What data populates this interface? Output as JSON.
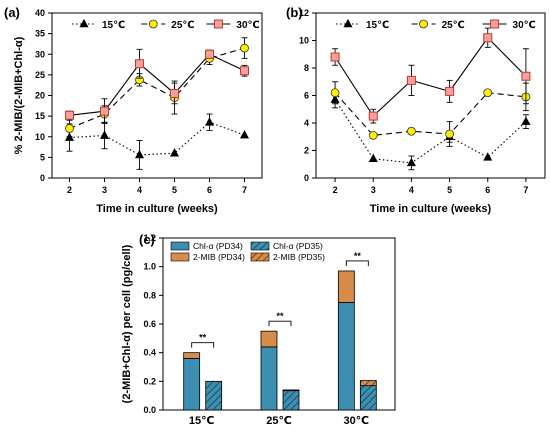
{
  "chart_data": [
    {
      "panel_label": "(a)",
      "type": "line",
      "xlabel": "Time in culture (weeks)",
      "ylabel": "% 2-MIB/(2-MIB+Chl-α)",
      "xlim": [
        1.5,
        7.5
      ],
      "ylim": [
        0,
        40
      ],
      "x_ticks": [
        "2",
        "3",
        "4",
        "5",
        "6",
        "7"
      ],
      "y_ticks": [
        "0",
        "5",
        "10",
        "15",
        "20",
        "25",
        "30",
        "35",
        "40"
      ],
      "legend_position": "top",
      "series": [
        {
          "name": "15℃",
          "marker": "triangle",
          "line": "dotted",
          "color": "#000000",
          "x": [
            2,
            3,
            4,
            5,
            6,
            7
          ],
          "y": [
            9.8,
            10.3,
            5.6,
            6.0,
            13.5,
            10.4
          ],
          "err": [
            3.3,
            3.2,
            3.5,
            0,
            2.0,
            0
          ]
        },
        {
          "name": "25℃",
          "marker": "circle",
          "line": "dashed",
          "color": "#ffee00",
          "x": [
            2,
            3,
            4,
            5,
            6,
            7
          ],
          "y": [
            12.0,
            15.5,
            23.8,
            19.5,
            29.0,
            31.5
          ],
          "err": [
            2.0,
            2.0,
            1.5,
            4.0,
            1.5,
            2.5
          ]
        },
        {
          "name": "30℃",
          "marker": "square",
          "line": "solid",
          "color": "#f4a0a0",
          "x": [
            2,
            3,
            4,
            5,
            6,
            7
          ],
          "y": [
            15.2,
            16.2,
            27.7,
            20.5,
            30.0,
            26.0
          ],
          "err": [
            1.0,
            3.0,
            3.5,
            2.5,
            1.0,
            1.3
          ]
        }
      ]
    },
    {
      "panel_label": "(b)",
      "type": "line",
      "xlabel": "Time in culture (weeks)",
      "ylabel": "",
      "xlim": [
        1.5,
        7.5
      ],
      "ylim": [
        0,
        12
      ],
      "x_ticks": [
        "2",
        "3",
        "4",
        "5",
        "6",
        "7"
      ],
      "y_ticks": [
        "0",
        "2",
        "4",
        "6",
        "8",
        "10",
        "12"
      ],
      "legend_position": "top",
      "series": [
        {
          "name": "15℃",
          "marker": "triangle",
          "line": "dotted",
          "color": "#000000",
          "x": [
            2,
            3,
            4,
            5,
            6,
            7
          ],
          "y": [
            5.7,
            1.4,
            1.1,
            3.0,
            1.5,
            4.1
          ],
          "err": [
            0.6,
            0,
            0.5,
            0.4,
            0,
            0.5
          ]
        },
        {
          "name": "25℃",
          "marker": "circle",
          "line": "dashed",
          "color": "#ffee00",
          "x": [
            2,
            3,
            4,
            5,
            6,
            7
          ],
          "y": [
            6.2,
            3.1,
            3.4,
            3.2,
            6.2,
            5.9
          ],
          "err": [
            0.8,
            0,
            0.2,
            0.9,
            0,
            1.0
          ]
        },
        {
          "name": "30℃",
          "marker": "square",
          "line": "solid",
          "color": "#f4a0a0",
          "x": [
            2,
            3,
            4,
            5,
            6,
            7
          ],
          "y": [
            8.8,
            4.5,
            7.1,
            6.3,
            10.2,
            7.4
          ],
          "err": [
            0.6,
            0.5,
            1.1,
            0.8,
            0.7,
            2.0
          ]
        }
      ]
    },
    {
      "panel_label": "(c)",
      "type": "bar",
      "stacked": true,
      "xlabel": "",
      "ylabel": "(2-MIB+Chl-α) per cell (pg/cell)",
      "ylim": [
        0,
        1.2
      ],
      "y_ticks": [
        "0.0",
        "0.2",
        "0.4",
        "0.6",
        "0.8",
        "1.0",
        "1.2"
      ],
      "categories": [
        "15℃",
        "25℃",
        "30℃"
      ],
      "legend": [
        "Chl-α (PD34)",
        "Chl-α (PD35)",
        "2-MIB (PD34)",
        "2-MIB (PD35)"
      ],
      "series": [
        {
          "name": "Chl-α (PD34)",
          "color": "#3c8fb0",
          "values": [
            0.36,
            0.44,
            0.75
          ]
        },
        {
          "name": "2-MIB (PD34)",
          "color": "#d98c4a",
          "values": [
            0.04,
            0.11,
            0.22
          ]
        },
        {
          "name": "Chl-α (PD35)",
          "color": "#3c8fb0",
          "hatch": true,
          "values": [
            0.2,
            0.135,
            0.17
          ]
        },
        {
          "name": "2-MIB (PD35)",
          "color": "#d98c4a",
          "hatch": true,
          "values": [
            0.0,
            0.005,
            0.035
          ]
        }
      ],
      "annotations": [
        "**",
        "**",
        "**"
      ]
    }
  ]
}
